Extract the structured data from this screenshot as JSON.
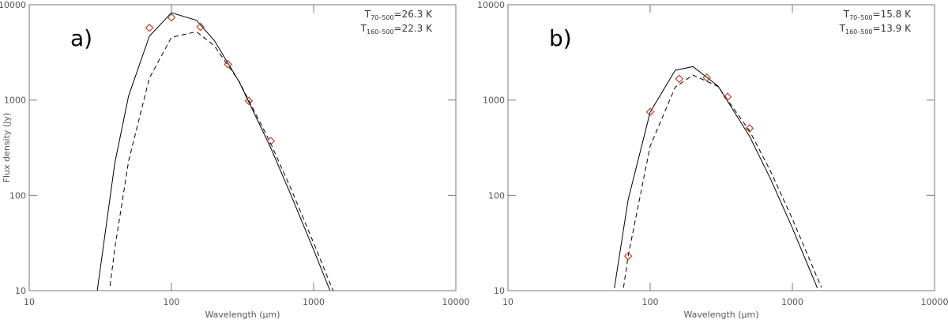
{
  "chart_data": [
    {
      "type": "line",
      "label": "a)",
      "annotations": [
        {
          "symbol": "T",
          "subscript": "70–500",
          "text": "=26.3 K"
        },
        {
          "symbol": "T",
          "subscript": "160–500",
          "text": "=22.3 K"
        }
      ],
      "xlabel": "Wavelength (μm)",
      "ylabel": "Flux density (Jy)",
      "xscale": "log",
      "yscale": "log",
      "xlim": [
        10,
        10000
      ],
      "ylim": [
        10,
        10000
      ],
      "xticks": [
        10,
        100,
        1000,
        10000
      ],
      "yticks": [
        10,
        100,
        1000,
        10000
      ],
      "points": {
        "x": [
          70,
          100,
          160,
          250,
          350,
          500
        ],
        "values": [
          5730,
          7370,
          5860,
          2370,
          980,
          372
        ],
        "color": "#b5452c"
      },
      "series": [
        {
          "x": [
            30,
            40,
            50,
            70,
            100,
            150,
            200,
            300,
            500,
            700,
            1000,
            1300
          ],
          "values": [
            9.7,
            219,
            1108,
            4685,
            8235,
            6866,
            4224,
            1544,
            314,
            97,
            26.8,
            10.1
          ],
          "color": "#000000",
          "dash": false
        },
        {
          "x": [
            37,
            40,
            50,
            70,
            100,
            150,
            200,
            300,
            500,
            700,
            1000,
            1400
          ],
          "values": [
            11.2,
            27.8,
            230,
            1704,
            4548,
            5205,
            3719,
            1560,
            349,
            113,
            31.7,
            9.2
          ],
          "color": "#000000",
          "dash": true
        }
      ]
    },
    {
      "type": "line",
      "label": "b)",
      "annotations": [
        {
          "symbol": "T",
          "subscript": "70–500",
          "text": "=15.8 K"
        },
        {
          "symbol": "T",
          "subscript": "160–500",
          "text": "=13.9 K"
        }
      ],
      "xlabel": "Wavelength (μm)",
      "xscale": "log",
      "yscale": "log",
      "xlim": [
        10,
        10000
      ],
      "ylim": [
        10,
        10000
      ],
      "xticks": [
        10,
        100,
        1000,
        10000
      ],
      "yticks": [
        10,
        100,
        1000,
        10000
      ],
      "points": {
        "x": [
          70,
          100,
          160,
          250,
          350,
          500
        ],
        "values": [
          23,
          751,
          1670,
          1720,
          1080,
          505
        ],
        "color": "#b5452c"
      },
      "series": [
        {
          "x": [
            56,
            70,
            100,
            150,
            200,
            300,
            500,
            700,
            1000,
            1500
          ],
          "values": [
            10.6,
            90,
            747,
            2054,
            2243,
            1401,
            417,
            150,
            45.4,
            10.6
          ],
          "color": "#000000",
          "dash": false
        },
        {
          "x": [
            65,
            70,
            100,
            150,
            200,
            300,
            500,
            700,
            1000,
            1600
          ],
          "values": [
            10.8,
            23.1,
            328,
            1366,
            1829,
            1388,
            475,
            181,
            56.6,
            10.8
          ],
          "color": "#000000",
          "dash": true
        }
      ]
    }
  ]
}
